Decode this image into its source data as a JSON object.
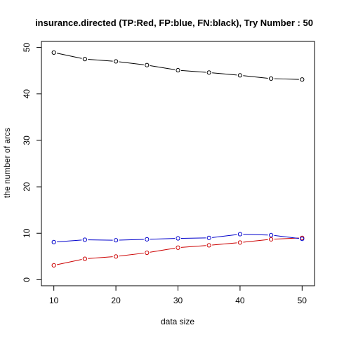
{
  "chart_data": {
    "type": "line",
    "title": "insurance.directed  (TP:Red, FP:blue, FN:black),  Try Number :  50",
    "xlabel": "data size",
    "ylabel": "the number of arcs",
    "xlim": [
      8,
      52
    ],
    "ylim": [
      -1.3,
      51.3
    ],
    "x_ticks": [
      10,
      20,
      30,
      40,
      50
    ],
    "y_ticks": [
      0,
      10,
      20,
      30,
      40,
      50
    ],
    "x": [
      10,
      15,
      20,
      25,
      30,
      35,
      40,
      45,
      50
    ],
    "grid": false,
    "legend": "none",
    "series": [
      {
        "name": "TP",
        "color": "#cc0000",
        "values": [
          3.1,
          4.5,
          5.0,
          5.8,
          6.9,
          7.4,
          8.0,
          8.7,
          9.0
        ]
      },
      {
        "name": "FP",
        "color": "#0000cc",
        "values": [
          8.1,
          8.6,
          8.5,
          8.7,
          8.9,
          9.0,
          9.8,
          9.6,
          8.8
        ]
      },
      {
        "name": "FN",
        "color": "#000000",
        "values": [
          48.9,
          47.5,
          47.0,
          46.2,
          45.1,
          44.6,
          44.0,
          43.3,
          43.1
        ]
      }
    ]
  }
}
